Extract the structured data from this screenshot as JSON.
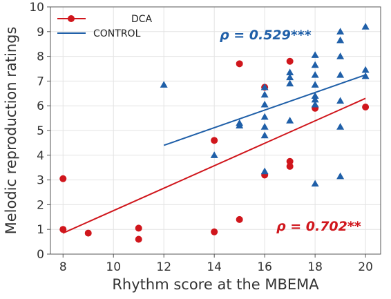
{
  "chart_data": {
    "type": "scatter",
    "xlabel": "Rhythm score at the MBEMA",
    "ylabel": "Melodic reproduction ratings",
    "xlim": [
      7.5,
      20.6
    ],
    "ylim": [
      0,
      10
    ],
    "xticks": [
      8,
      10,
      12,
      14,
      16,
      18,
      20
    ],
    "yticks": [
      0,
      1,
      2,
      3,
      4,
      5,
      6,
      7,
      8,
      9,
      10
    ],
    "grid": true,
    "legend_position": "top-left",
    "series": [
      {
        "name": "DCA",
        "color": "#d0161c",
        "marker": "circle",
        "points": [
          [
            8,
            3.05
          ],
          [
            8,
            1.0
          ],
          [
            9,
            0.85
          ],
          [
            11,
            1.05
          ],
          [
            11,
            0.6
          ],
          [
            14,
            4.6
          ],
          [
            14,
            0.9
          ],
          [
            15,
            7.7
          ],
          [
            15,
            1.4
          ],
          [
            16,
            6.75
          ],
          [
            16,
            3.2
          ],
          [
            17,
            7.8
          ],
          [
            17,
            3.75
          ],
          [
            17,
            3.55
          ],
          [
            18,
            5.9
          ],
          [
            20,
            5.95
          ]
        ],
        "fit_line": [
          [
            8,
            0.85
          ],
          [
            20,
            6.3
          ]
        ],
        "annotation": "ρ = 0.702**"
      },
      {
        "name": "CONTROL",
        "color": "#1f5fa8",
        "marker": "triangle",
        "points": [
          [
            12,
            6.85
          ],
          [
            14,
            4.0
          ],
          [
            15,
            5.3
          ],
          [
            15,
            5.2
          ],
          [
            16,
            6.75
          ],
          [
            16,
            6.45
          ],
          [
            16,
            6.05
          ],
          [
            16,
            5.55
          ],
          [
            16,
            5.15
          ],
          [
            16,
            4.8
          ],
          [
            16,
            3.35
          ],
          [
            17,
            7.35
          ],
          [
            17,
            7.15
          ],
          [
            17,
            6.9
          ],
          [
            17,
            5.4
          ],
          [
            18,
            8.05
          ],
          [
            18,
            7.65
          ],
          [
            18,
            7.25
          ],
          [
            18,
            6.85
          ],
          [
            18,
            6.4
          ],
          [
            18,
            6.25
          ],
          [
            18,
            6.05
          ],
          [
            18,
            2.85
          ],
          [
            19,
            9.0
          ],
          [
            19,
            8.65
          ],
          [
            19,
            8.0
          ],
          [
            19,
            7.25
          ],
          [
            19,
            6.2
          ],
          [
            19,
            5.15
          ],
          [
            19,
            3.15
          ],
          [
            20,
            9.2
          ],
          [
            20,
            7.45
          ],
          [
            20,
            7.2
          ]
        ],
        "fit_line": [
          [
            12,
            4.4
          ],
          [
            20,
            7.25
          ]
        ],
        "annotation": "ρ = 0.529***"
      }
    ]
  }
}
